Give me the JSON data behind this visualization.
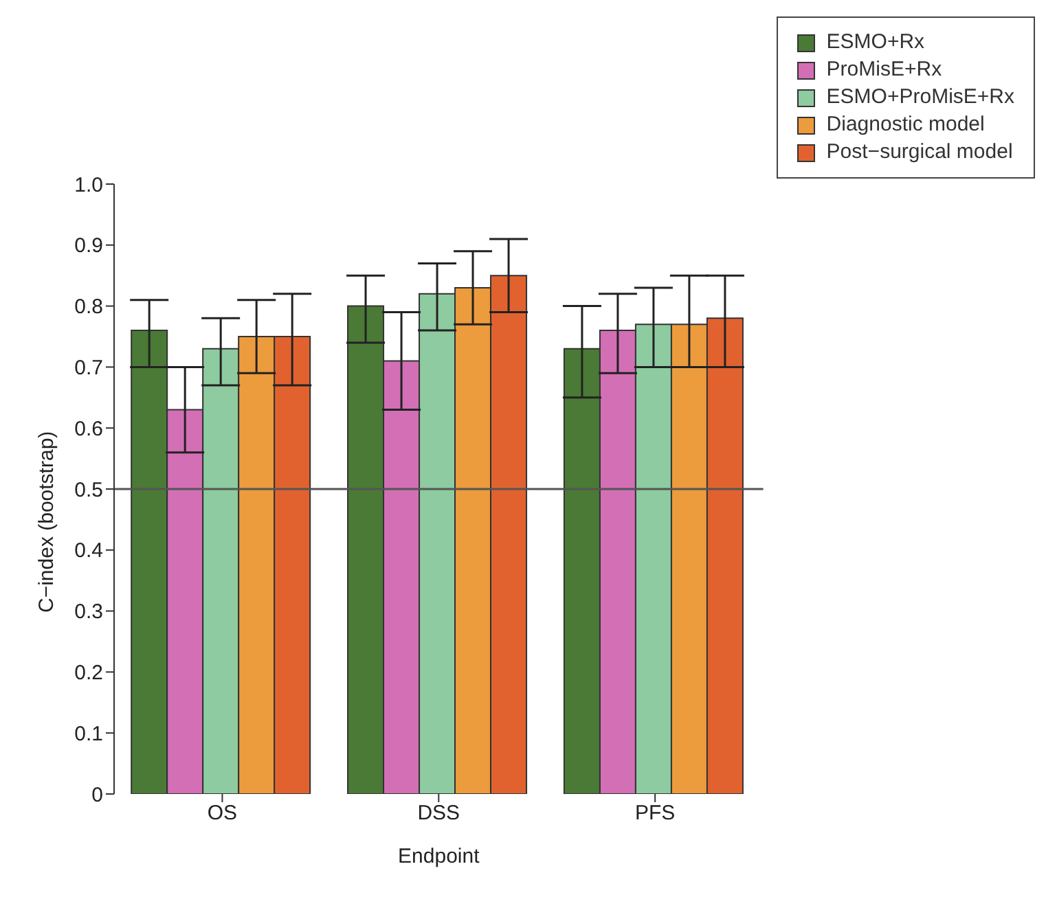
{
  "chart_data": {
    "type": "bar",
    "xlabel": "Endpoint",
    "ylabel": "C−index (bootstrap)",
    "categories": [
      "OS",
      "DSS",
      "PFS"
    ],
    "series": [
      {
        "name": "ESMO+Rx",
        "color": "#4a7a36",
        "values": [
          0.76,
          0.8,
          0.73
        ],
        "errors": [
          [
            0.7,
            0.81
          ],
          [
            0.74,
            0.85
          ],
          [
            0.65,
            0.8
          ]
        ]
      },
      {
        "name": "ProMisE+Rx",
        "color": "#d36fb5",
        "values": [
          0.63,
          0.71,
          0.76
        ],
        "errors": [
          [
            0.56,
            0.7
          ],
          [
            0.63,
            0.79
          ],
          [
            0.69,
            0.82
          ]
        ]
      },
      {
        "name": "ESMO+ProMisE+Rx",
        "color": "#8ecba0",
        "values": [
          0.73,
          0.82,
          0.77
        ],
        "errors": [
          [
            0.67,
            0.78
          ],
          [
            0.76,
            0.87
          ],
          [
            0.7,
            0.83
          ]
        ]
      },
      {
        "name": "Diagnostic model",
        "color": "#ec9b3d",
        "values": [
          0.75,
          0.83,
          0.77
        ],
        "errors": [
          [
            0.69,
            0.81
          ],
          [
            0.77,
            0.89
          ],
          [
            0.7,
            0.85
          ]
        ]
      },
      {
        "name": "Post−surgical model",
        "color": "#e2622f",
        "values": [
          0.75,
          0.85,
          0.78
        ],
        "errors": [
          [
            0.67,
            0.82
          ],
          [
            0.79,
            0.91
          ],
          [
            0.7,
            0.85
          ]
        ]
      }
    ],
    "ylim": [
      0,
      1
    ],
    "yticks": [
      0,
      0.1,
      0.2,
      0.3,
      0.4,
      0.5,
      0.6,
      0.7,
      0.8,
      0.9,
      {
        "value": 1,
        "label": "1.0"
      }
    ],
    "ref_lines": [
      {
        "axis": "y",
        "value": 0.5,
        "color": "#555555"
      }
    ],
    "grid": false,
    "legend": "top right"
  }
}
